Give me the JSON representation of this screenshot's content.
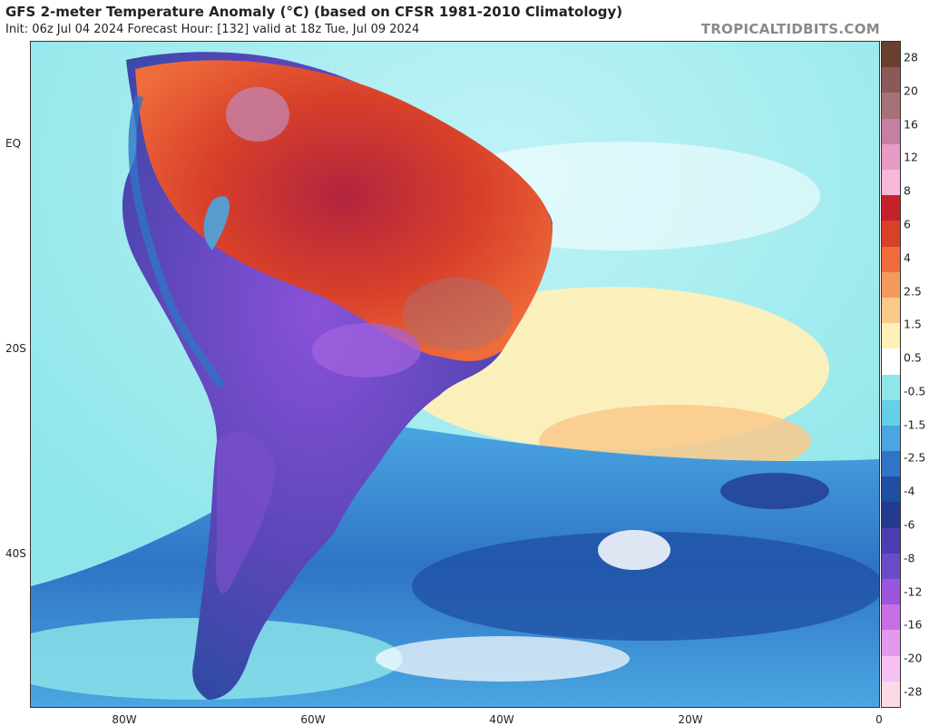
{
  "header": {
    "title": "GFS 2-meter Temperature Anomaly (°C) (based on CFSR 1981-2010 Climatology)",
    "subtitle": "Init: 06z Jul 04 2024   Forecast Hour: [132]   valid at 18z Tue, Jul 09 2024",
    "brand": "TROPICALTIDBITS.COM"
  },
  "map": {
    "region": "South America and South Atlantic",
    "lat_labels": [
      "EQ",
      "20S",
      "40S"
    ],
    "lon_labels": [
      "80W",
      "60W",
      "40W",
      "20W",
      "0"
    ]
  },
  "colorbar": {
    "labels": [
      "28",
      "20",
      "16",
      "12",
      "8",
      "6",
      "4",
      "2.5",
      "1.5",
      "0.5",
      "-0.5",
      "-1.5",
      "-2.5",
      "-4",
      "-6",
      "-8",
      "-12",
      "-16",
      "-20",
      "-28"
    ],
    "colors": [
      "#6b3f2e",
      "#8a5a56",
      "#a47378",
      "#c67fa3",
      "#e79ac4",
      "#f7b8da",
      "#c4222b",
      "#d8402a",
      "#ee6b3a",
      "#f59a5d",
      "#f9c98a",
      "#fff0b8",
      "#ffffff",
      "#8ee6ea",
      "#66cfe8",
      "#4aa6e0",
      "#2f74c6",
      "#1f4fa3",
      "#223a90",
      "#4a3fb0",
      "#6b4cc7",
      "#9b56dc",
      "#c770e3",
      "#e49aec",
      "#f6c0f0",
      "#fbd9e6"
    ]
  }
}
